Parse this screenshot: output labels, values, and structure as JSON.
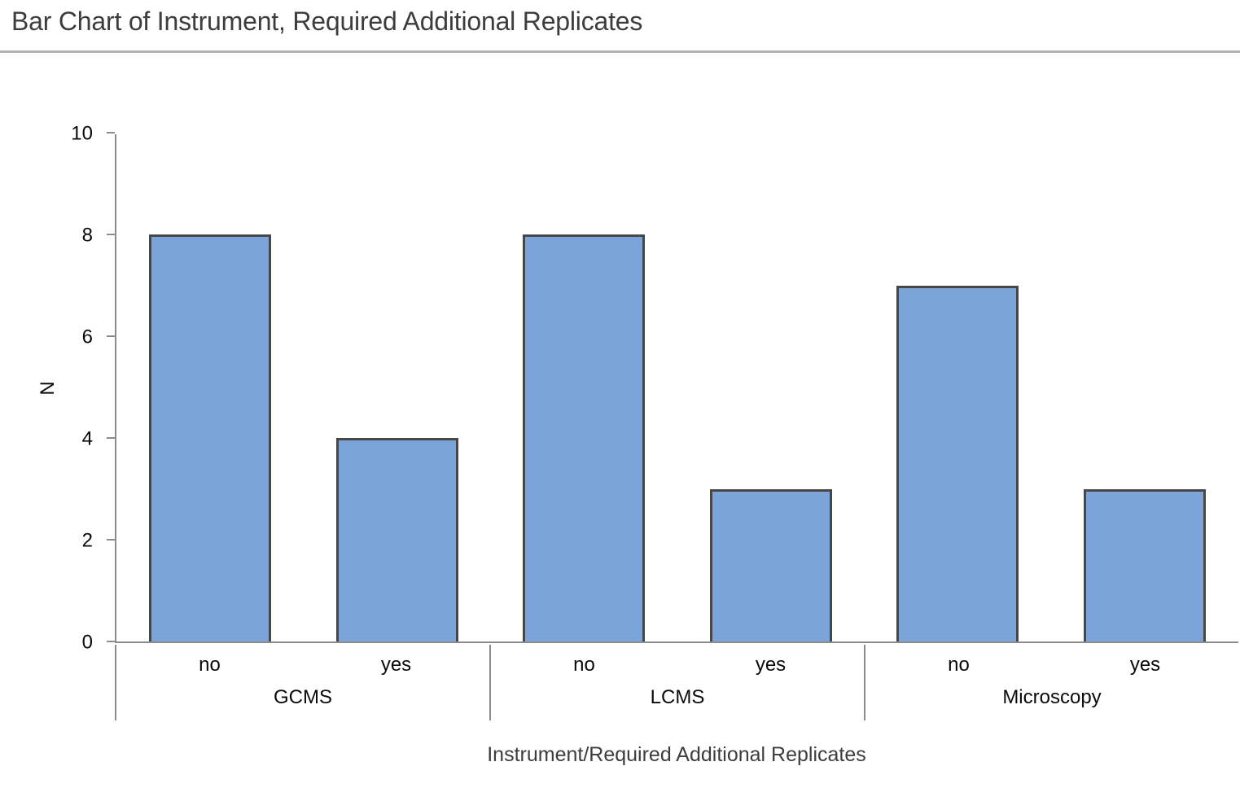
{
  "header": {
    "title": "Bar Chart of Instrument, Required Additional Replicates"
  },
  "chart_data": {
    "type": "bar",
    "title": "Bar Chart of Instrument, Required Additional Replicates",
    "xlabel": "Instrument/Required Additional Replicates",
    "ylabel": "N",
    "ylim": [
      0,
      10
    ],
    "yticks": [
      0,
      2,
      4,
      6,
      8,
      10
    ],
    "grid": false,
    "legend": false,
    "categories": [
      "no",
      "yes"
    ],
    "groups": [
      {
        "label": "GCMS",
        "series": [
          {
            "category": "no",
            "value": 8
          },
          {
            "category": "yes",
            "value": 4
          }
        ]
      },
      {
        "label": "LCMS",
        "series": [
          {
            "category": "no",
            "value": 8
          },
          {
            "category": "yes",
            "value": 3
          }
        ]
      },
      {
        "label": "Microscopy",
        "series": [
          {
            "category": "no",
            "value": 7
          },
          {
            "category": "yes",
            "value": 3
          }
        ]
      }
    ],
    "colors": {
      "bar_fill": "#7ba4d9",
      "bar_border": "#474747",
      "axis": "#8c8c8c",
      "tick_text": "#0a0a0a",
      "title_text": "#3d3d3d",
      "divider": "#b3b3b3"
    }
  }
}
